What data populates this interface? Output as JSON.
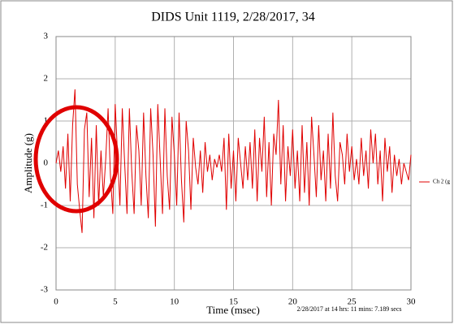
{
  "chart_data": {
    "type": "line",
    "title": "DIDS Unit 1119, 2/28/2017, 34",
    "x_label": "Time (msec)",
    "y_label": "Amplitude (g)",
    "footnote": "2/28/2017 at 14 hrs: 11 mins: 7.189 secs",
    "xlim": [
      0,
      30
    ],
    "xticks": [
      0,
      5,
      10,
      15,
      20,
      25,
      30
    ],
    "ylim": [
      -3,
      3
    ],
    "yticks": [
      -3,
      -2,
      -1,
      0,
      1,
      2,
      3
    ],
    "grid": true,
    "legend": "right",
    "x": [
      0,
      0.2,
      0.4,
      0.6,
      0.8,
      1,
      1.2,
      1.4,
      1.6,
      1.8,
      2,
      2.2,
      2.4,
      2.6,
      2.8,
      3,
      3.2,
      3.4,
      3.6,
      3.8,
      4,
      4.2,
      4.4,
      4.6,
      4.8,
      5,
      5.2,
      5.4,
      5.6,
      5.8,
      6,
      6.2,
      6.4,
      6.6,
      6.8,
      7,
      7.2,
      7.4,
      7.6,
      7.8,
      8,
      8.2,
      8.4,
      8.6,
      8.8,
      9,
      9.2,
      9.4,
      9.6,
      9.8,
      10,
      10.2,
      10.4,
      10.6,
      10.8,
      11,
      11.2,
      11.4,
      11.6,
      11.8,
      12,
      12.2,
      12.4,
      12.6,
      12.8,
      13,
      13.2,
      13.4,
      13.6,
      13.8,
      14,
      14.2,
      14.4,
      14.6,
      14.8,
      15,
      15.2,
      15.4,
      15.6,
      15.8,
      16,
      16.2,
      16.4,
      16.6,
      16.8,
      17,
      17.2,
      17.4,
      17.6,
      17.8,
      18,
      18.2,
      18.4,
      18.6,
      18.8,
      19,
      19.2,
      19.4,
      19.6,
      19.8,
      20,
      20.2,
      20.4,
      20.6,
      20.8,
      21,
      21.2,
      21.4,
      21.6,
      21.8,
      22,
      22.2,
      22.4,
      22.6,
      22.8,
      23,
      23.2,
      23.4,
      23.6,
      23.8,
      24,
      24.2,
      24.4,
      24.6,
      24.8,
      25,
      25.2,
      25.4,
      25.6,
      25.8,
      26,
      26.2,
      26.4,
      26.6,
      26.8,
      27,
      27.2,
      27.4,
      27.6,
      27.8,
      28,
      28.2,
      28.4,
      28.6,
      28.8,
      29,
      29.2,
      29.4,
      29.6,
      29.8,
      30
    ],
    "series": [
      {
        "name": "Ch 2 (g",
        "color": "#e00000",
        "values": [
          0,
          0.3,
          -0.2,
          0.4,
          -0.6,
          0.7,
          -0.9,
          0.9,
          1.75,
          -0.5,
          -1.1,
          -1.65,
          0.8,
          1.2,
          -0.8,
          0.6,
          -1.3,
          0.9,
          -1.0,
          0.3,
          -0.8,
          0.1,
          1.3,
          -0.3,
          -1.2,
          1.4,
          0.2,
          -1.0,
          1.3,
          0.0,
          -1.2,
          1.3,
          -0.2,
          -1.2,
          0.9,
          0.3,
          -1.0,
          1.2,
          -0.3,
          -1.3,
          1.3,
          0.2,
          -1.5,
          1.4,
          0.1,
          -1.2,
          1.3,
          -0.3,
          -1.1,
          1.1,
          0.2,
          -1.0,
          1.2,
          -0.4,
          -1.4,
          1.0,
          0.3,
          -1.1,
          0.6,
          -0.1,
          -0.5,
          0.3,
          -0.7,
          0.5,
          -0.2,
          0.2,
          -0.4,
          0.1,
          -0.1,
          0.2,
          -0.2,
          0.6,
          -1.1,
          0.7,
          -0.6,
          0.3,
          -0.9,
          0.6,
          0.0,
          -0.6,
          0.4,
          -0.4,
          0.5,
          -0.6,
          0.8,
          -0.9,
          0.6,
          -0.2,
          1.1,
          -0.8,
          0.5,
          -1.0,
          0.7,
          0.2,
          1.5,
          -0.5,
          0.9,
          -0.9,
          0.4,
          -0.3,
          0.8,
          -0.6,
          0.3,
          -0.9,
          0.9,
          -0.7,
          0.5,
          -1.0,
          1.1,
          0.2,
          -0.8,
          0.9,
          -0.4,
          0.3,
          -0.9,
          0.7,
          -0.6,
          1.2,
          -0.3,
          -0.9,
          0.5,
          0.2,
          -0.5,
          0.7,
          -0.2,
          0.4,
          -0.4,
          0.1,
          -0.5,
          0.6,
          -0.3,
          0.3,
          -0.6,
          0.8,
          0.0,
          0.7,
          -0.5,
          0.3,
          -0.9,
          0.6,
          -0.2,
          0.4,
          -0.7,
          0.2,
          -0.3,
          0.1,
          -0.5,
          0.0,
          -0.2,
          -0.4,
          0.2
        ]
      }
    ]
  }
}
